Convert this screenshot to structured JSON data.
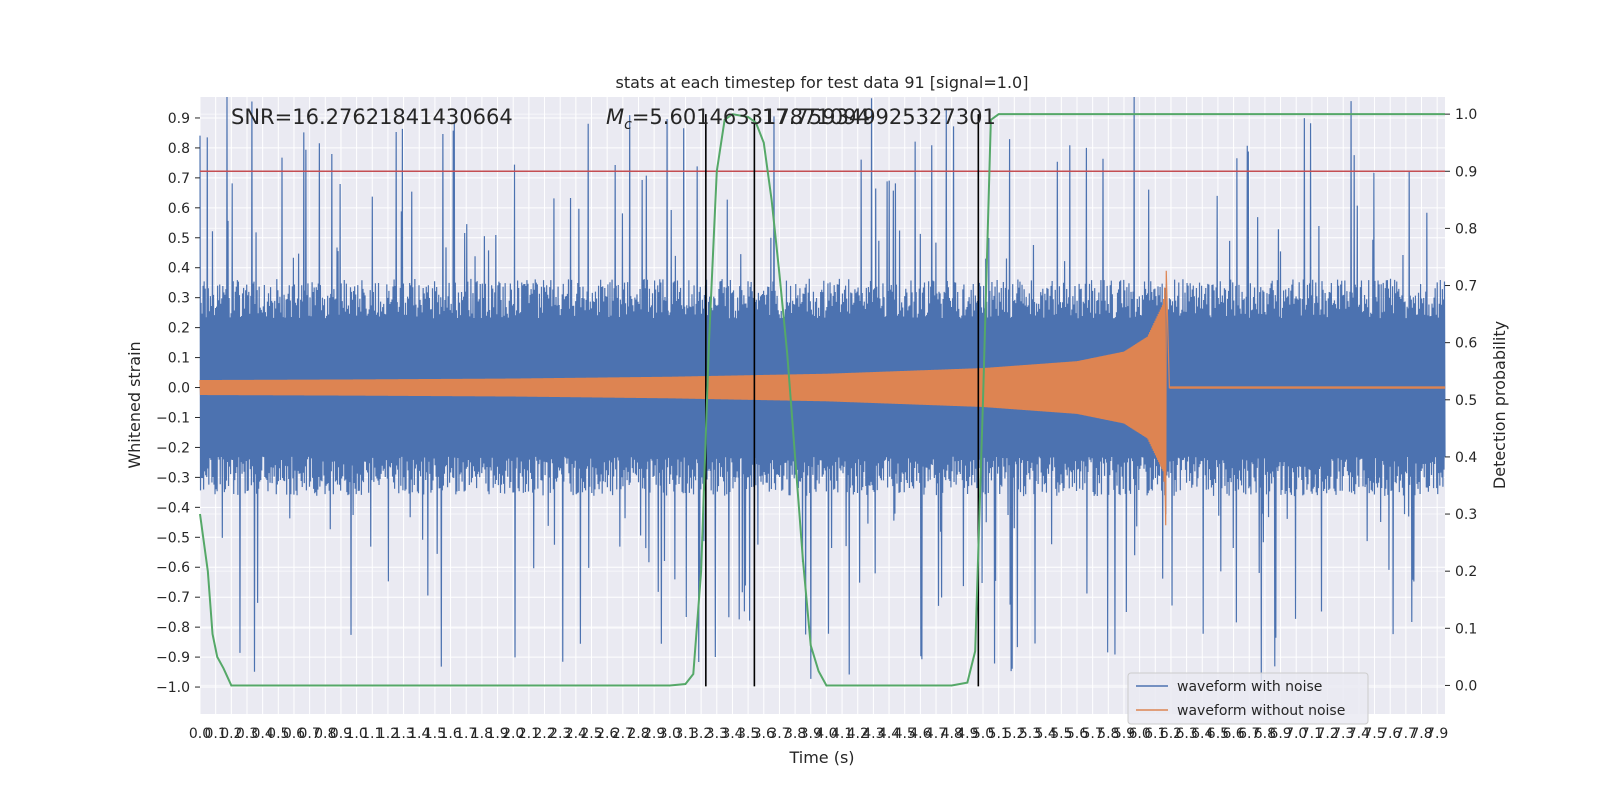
{
  "chart_data": {
    "type": "line",
    "title": "stats at each timestep for test data 91 [signal=1.0]",
    "xlabel": "Time (s)",
    "ylabel": "Whitened strain",
    "y2label": "Detection probability",
    "xlim": [
      0.0,
      7.95
    ],
    "ylim": [
      -1.09,
      0.97
    ],
    "y2lim": [
      -0.05,
      1.03
    ],
    "grid": true,
    "x_ticks": [
      0.0,
      0.1,
      0.2,
      0.3,
      0.4,
      0.5,
      0.6,
      0.7,
      0.8,
      0.9,
      1.0,
      1.1,
      1.2,
      1.3,
      1.4,
      1.5,
      1.6,
      1.7,
      1.8,
      1.9,
      2.0,
      2.1,
      2.2,
      2.3,
      2.4,
      2.5,
      2.6,
      2.7,
      2.8,
      2.9,
      3.0,
      3.1,
      3.2,
      3.3,
      3.4,
      3.5,
      3.6,
      3.7,
      3.8,
      3.9,
      4.0,
      4.1,
      4.2,
      4.3,
      4.4,
      4.5,
      4.6,
      4.7,
      4.8,
      4.9,
      5.0,
      5.1,
      5.2,
      5.3,
      5.4,
      5.5,
      5.6,
      5.7,
      5.8,
      5.9,
      6.0,
      6.1,
      6.2,
      6.3,
      6.4,
      6.5,
      6.6,
      6.7,
      6.8,
      6.9,
      7.0,
      7.1,
      7.2,
      7.3,
      7.4,
      7.5,
      7.6,
      7.7,
      7.8,
      7.9
    ],
    "x_tick_labels": [
      "0.0",
      "0.1",
      "0.2",
      "0.3",
      "0.4",
      "0.5",
      "0.6",
      "0.7",
      "0.8",
      "0.9",
      "1.0",
      "1.1",
      "1.2",
      "1.3",
      "1.4",
      "1.5",
      "1.6",
      "1.7",
      "1.8",
      "1.9",
      "2.0",
      "2.1",
      "2.2",
      "2.3",
      "2.4",
      "2.5",
      "2.6",
      "2.7",
      "2.8",
      "2.9",
      "3.0",
      "3.1",
      "3.2",
      "3.3",
      "3.4",
      "3.5",
      "3.6",
      "3.7",
      "3.8",
      "3.9",
      "4.0",
      "4.1",
      "4.2",
      "4.3",
      "4.4",
      "4.5",
      "4.6",
      "4.7",
      "4.8",
      "4.9",
      "5.0",
      "5.1",
      "5.2",
      "5.3",
      "5.4",
      "5.5",
      "5.6",
      "5.7",
      "5.8",
      "5.9",
      "6.0",
      "6.1",
      "6.2",
      "6.3",
      "6.4",
      "6.5",
      "6.6",
      "6.7",
      "6.8",
      "6.9",
      "7.0",
      "7.1",
      "7.2",
      "7.3",
      "7.4",
      "7.5",
      "7.6",
      "7.7",
      "7.8",
      "7.9"
    ],
    "y_ticks": [
      -1.0,
      -0.9,
      -0.8,
      -0.7,
      -0.6,
      -0.5,
      -0.4,
      -0.3,
      -0.2,
      -0.1,
      0.0,
      0.1,
      0.2,
      0.3,
      0.4,
      0.5,
      0.6,
      0.7,
      0.8,
      0.9
    ],
    "y_tick_labels": [
      "−1.0",
      "−0.9",
      "−0.8",
      "−0.7",
      "−0.6",
      "−0.5",
      "−0.4",
      "−0.3",
      "−0.2",
      "−0.1",
      "0.0",
      "0.1",
      "0.2",
      "0.3",
      "0.4",
      "0.5",
      "0.6",
      "0.7",
      "0.8",
      "0.9"
    ],
    "y2_ticks": [
      0.0,
      0.1,
      0.2,
      0.3,
      0.4,
      0.5,
      0.6,
      0.7,
      0.8,
      0.9,
      1.0
    ],
    "y2_tick_labels": [
      "0.0",
      "0.1",
      "0.2",
      "0.3",
      "0.4",
      "0.5",
      "0.6",
      "0.7",
      "0.8",
      "0.9",
      "1.0"
    ],
    "annotations": {
      "snr": "SNR=16.27621841430664",
      "mc_symbol": "M",
      "mc_sub": "c",
      "mc_value": "=5.601463317871094",
      "overlap": "17.759349925327301"
    },
    "threshold_y2": 0.9,
    "vertical_lines_x": [
      3.23,
      3.54,
      4.97
    ],
    "noise_envelope": {
      "x_start": 0.0,
      "x_end": 7.95,
      "base_amplitude": 0.33,
      "spike_max": 0.99
    },
    "signal_chirp": {
      "t_start": 0.0,
      "t_merge": 6.17,
      "t_end": 7.95,
      "amp_start": 0.025,
      "amp_peak": 0.39,
      "amp_min_peak": -0.46,
      "ringdown_amp": 0.004,
      "samples": [
        {
          "t": 0.0,
          "amp": 0.025
        },
        {
          "t": 1.0,
          "amp": 0.027
        },
        {
          "t": 2.0,
          "amp": 0.03
        },
        {
          "t": 3.0,
          "amp": 0.036
        },
        {
          "t": 4.0,
          "amp": 0.046
        },
        {
          "t": 5.0,
          "amp": 0.065
        },
        {
          "t": 5.6,
          "amp": 0.088
        },
        {
          "t": 5.9,
          "amp": 0.12
        },
        {
          "t": 6.05,
          "amp": 0.17
        },
        {
          "t": 6.15,
          "amp": 0.28
        },
        {
          "t": 6.17,
          "amp": 0.39
        }
      ]
    },
    "series": [
      {
        "name": "detection probability",
        "axis": "right",
        "color": "#55a868",
        "points": [
          [
            0.0,
            0.3
          ],
          [
            0.05,
            0.2
          ],
          [
            0.08,
            0.09
          ],
          [
            0.11,
            0.05
          ],
          [
            0.15,
            0.03
          ],
          [
            0.2,
            0.0
          ],
          [
            0.4,
            0.0
          ],
          [
            1.0,
            0.0
          ],
          [
            2.0,
            0.0
          ],
          [
            3.0,
            0.0
          ],
          [
            3.1,
            0.0025
          ],
          [
            3.15,
            0.02
          ],
          [
            3.2,
            0.2
          ],
          [
            3.25,
            0.6
          ],
          [
            3.3,
            0.9
          ],
          [
            3.35,
            0.99
          ],
          [
            3.4,
            1.0
          ],
          [
            3.5,
            0.995
          ],
          [
            3.55,
            0.985
          ],
          [
            3.6,
            0.95
          ],
          [
            3.65,
            0.85
          ],
          [
            3.7,
            0.72
          ],
          [
            3.75,
            0.58
          ],
          [
            3.8,
            0.4
          ],
          [
            3.85,
            0.22
          ],
          [
            3.9,
            0.07
          ],
          [
            3.95,
            0.025
          ],
          [
            4.0,
            0.0
          ],
          [
            4.5,
            0.0
          ],
          [
            4.8,
            0.0
          ],
          [
            4.9,
            0.005
          ],
          [
            4.95,
            0.06
          ],
          [
            5.0,
            0.5
          ],
          [
            5.05,
            0.99
          ],
          [
            5.1,
            1.0
          ],
          [
            7.95,
            1.0
          ]
        ]
      }
    ],
    "legend": {
      "placement": "bottom-right",
      "entries": [
        {
          "label": "waveform with noise",
          "color": "#4c72b0"
        },
        {
          "label": "waveform without noise",
          "color": "#dd8452"
        }
      ]
    },
    "colors": {
      "noise": "#4c72b0",
      "signal": "#dd8452",
      "probability": "#55a868",
      "threshold": "#c44e52",
      "vline": "#000000",
      "plot_bg": "#eaeaf2",
      "grid": "#ffffff"
    }
  }
}
